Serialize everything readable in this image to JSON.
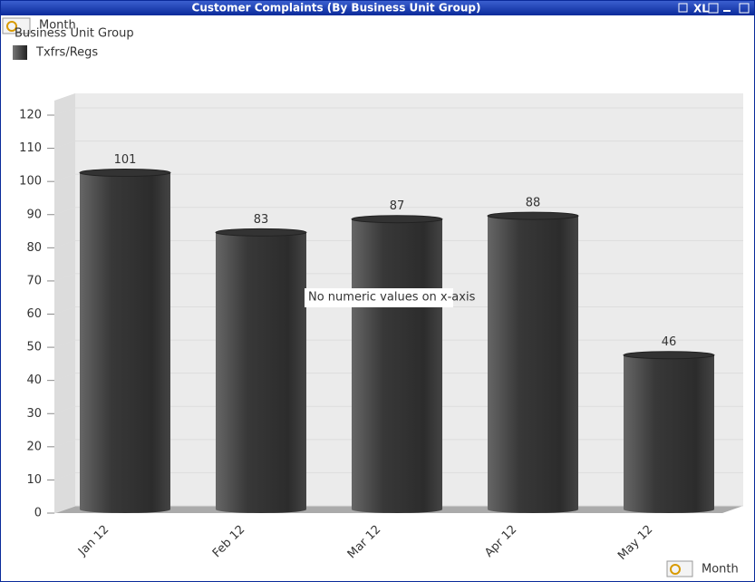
{
  "window": {
    "title": "Customer Complaints (By Business Unit Group)",
    "xl_button": "XL",
    "dimension_dropdown": "Month"
  },
  "chart_data": {
    "type": "bar",
    "legend_title": "Business Unit Group",
    "categories": [
      "Jan 12",
      "Feb 12",
      "Mar 12",
      "Apr 12",
      "May 12"
    ],
    "series": [
      {
        "name": "Txfrs/Regs",
        "color": "#333333",
        "values": [
          101,
          83,
          87,
          88,
          46
        ]
      }
    ],
    "ylim": [
      0,
      120
    ],
    "yticks": [
      0,
      10,
      20,
      30,
      40,
      50,
      60,
      70,
      80,
      90,
      100,
      110,
      120
    ],
    "grid": true,
    "annotation": "No numeric values on x-axis",
    "x_label": "Month"
  }
}
